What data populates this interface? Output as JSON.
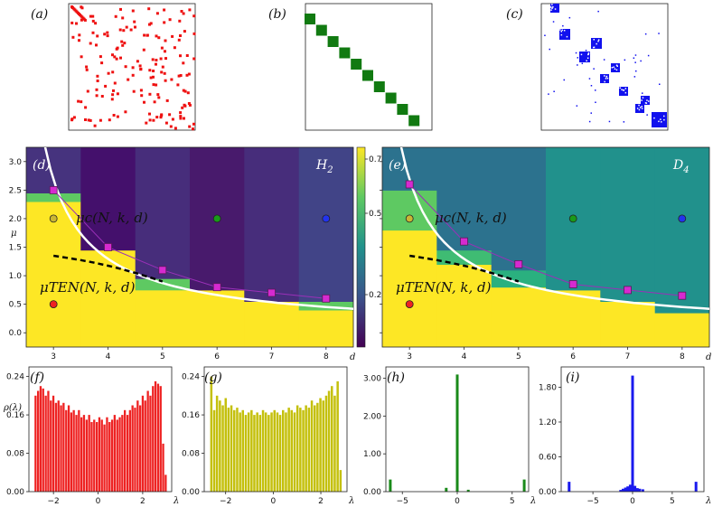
{
  "panels": {
    "a": {
      "label": "(a)",
      "color": "#ee1111"
    },
    "b": {
      "label": "(b)",
      "color": "#117a11"
    },
    "c": {
      "label": "(c)",
      "color": "#1111ee"
    },
    "d": {
      "label": "(d)",
      "corner": "H",
      "corner_sub": "2"
    },
    "e": {
      "label": "(e)",
      "corner": "D",
      "corner_sub": "4"
    },
    "f": {
      "label": "(f)"
    },
    "g": {
      "label": "(g)"
    },
    "h": {
      "label": "(h)"
    },
    "i": {
      "label": "(i)"
    }
  },
  "curve_labels": {
    "mu_c": "μc(N, k, d)",
    "mu_ten": "μTEN(N, k, d)"
  },
  "colorbar": {
    "ticks": [
      "0.7",
      "0.5",
      "0.2"
    ]
  },
  "chart_data": [
    {
      "id": "d",
      "type": "heatmap",
      "title": "H2",
      "xlabel": "d",
      "ylabel": "μ",
      "xticks": [
        "3",
        "4",
        "5",
        "6",
        "7",
        "8"
      ],
      "yticks": [
        "0.0",
        "0.5",
        "1.0",
        "1.5",
        "2.0",
        "2.5",
        "3.0"
      ],
      "xlim": [
        2.5,
        8.5
      ],
      "ylim": [
        -0.25,
        3.25
      ],
      "mu_c_points": [
        [
          3,
          2.5
        ],
        [
          4,
          1.5
        ],
        [
          5,
          1.1
        ],
        [
          6,
          0.8
        ],
        [
          7,
          0.7
        ],
        [
          8,
          0.6
        ]
      ],
      "markers": [
        {
          "d": 3,
          "mu": 2.0,
          "color": "#c9b634"
        },
        {
          "d": 3,
          "mu": 0.5,
          "color": "#ee2222"
        },
        {
          "d": 6,
          "mu": 2.0,
          "color": "#1a9a1a"
        },
        {
          "d": 8,
          "mu": 2.0,
          "color": "#2233ee"
        }
      ],
      "mu_ten_points": [
        [
          3,
          1.35
        ],
        [
          4,
          1.12
        ],
        [
          5,
          0.9
        ]
      ]
    },
    {
      "id": "e",
      "type": "heatmap",
      "title": "D4",
      "xlabel": "d",
      "xticks": [
        "3",
        "4",
        "5",
        "6",
        "7",
        "8"
      ],
      "yticks": [
        "0.0",
        "0.5",
        "1.0",
        "1.5",
        "2.0",
        "2.5",
        "3.0"
      ],
      "xlim": [
        2.5,
        8.5
      ],
      "ylim": [
        -0.25,
        3.25
      ],
      "mu_c_points": [
        [
          3,
          2.6
        ],
        [
          4,
          1.6
        ],
        [
          5,
          1.2
        ],
        [
          6,
          0.85
        ],
        [
          7,
          0.75
        ],
        [
          8,
          0.65
        ]
      ],
      "markers": [
        {
          "d": 3,
          "mu": 2.0,
          "color": "#c9b634"
        },
        {
          "d": 3,
          "mu": 0.5,
          "color": "#ee2222"
        },
        {
          "d": 6,
          "mu": 2.0,
          "color": "#1a9a1a"
        },
        {
          "d": 8,
          "mu": 2.0,
          "color": "#2233ee"
        }
      ],
      "mu_ten_points": [
        [
          3,
          1.35
        ],
        [
          4,
          1.12
        ],
        [
          5,
          0.9
        ]
      ]
    },
    {
      "id": "f",
      "type": "bar",
      "xlabel": "λ",
      "ylabel": "ρ(λ)",
      "color": "#ee2222",
      "xticks": [
        "−2",
        "0",
        "2"
      ],
      "yticks": [
        "0.00",
        "0.08",
        "0.16",
        "0.24"
      ],
      "xlim": [
        -3.1,
        3.3
      ],
      "ylim": [
        0,
        0.26
      ],
      "values": [
        0.2,
        0.21,
        0.22,
        0.215,
        0.2,
        0.21,
        0.19,
        0.2,
        0.185,
        0.19,
        0.18,
        0.185,
        0.17,
        0.18,
        0.165,
        0.17,
        0.16,
        0.17,
        0.155,
        0.16,
        0.15,
        0.16,
        0.145,
        0.15,
        0.145,
        0.155,
        0.15,
        0.14,
        0.155,
        0.145,
        0.15,
        0.16,
        0.15,
        0.155,
        0.16,
        0.17,
        0.16,
        0.17,
        0.18,
        0.175,
        0.19,
        0.18,
        0.2,
        0.19,
        0.21,
        0.2,
        0.22,
        0.23,
        0.225,
        0.22,
        0.1,
        0.035
      ]
    },
    {
      "id": "g",
      "type": "bar",
      "xlabel": "λ",
      "color": "#c4c00c",
      "xticks": [
        "−2",
        "0",
        "2"
      ],
      "yticks": [
        "0.00",
        "0.08",
        "0.16",
        "0.24"
      ],
      "xlim": [
        -2.9,
        3.1
      ],
      "ylim": [
        0,
        0.26
      ],
      "values": [
        0.24,
        0.17,
        0.2,
        0.19,
        0.18,
        0.195,
        0.175,
        0.18,
        0.17,
        0.175,
        0.165,
        0.17,
        0.16,
        0.165,
        0.17,
        0.16,
        0.165,
        0.16,
        0.17,
        0.165,
        0.16,
        0.165,
        0.17,
        0.165,
        0.16,
        0.17,
        0.165,
        0.175,
        0.17,
        0.165,
        0.18,
        0.175,
        0.17,
        0.18,
        0.175,
        0.19,
        0.18,
        0.185,
        0.195,
        0.19,
        0.2,
        0.21,
        0.22,
        0.2,
        0.23,
        0.045
      ]
    },
    {
      "id": "h",
      "type": "bar",
      "xlabel": "λ",
      "color": "#1a8a1a",
      "xticks": [
        "−5",
        "0",
        "5"
      ],
      "yticks": [
        "0.00",
        "1.00",
        "2.00",
        "3.00"
      ],
      "xlim": [
        -6.5,
        6.5
      ],
      "ylim": [
        0,
        3.3
      ],
      "bars": [
        {
          "x": -6.1,
          "v": 0.32
        },
        {
          "x": -1.0,
          "v": 0.1
        },
        {
          "x": 0.0,
          "v": 3.1
        },
        {
          "x": 1.0,
          "v": 0.05
        },
        {
          "x": 6.1,
          "v": 0.32
        }
      ]
    },
    {
      "id": "i",
      "type": "bar",
      "xlabel": "λ",
      "color": "#1a1aee",
      "xticks": [
        "−5",
        "0",
        "5"
      ],
      "yticks": [
        "0.00",
        "0.60",
        "1.20",
        "1.80"
      ],
      "xlim": [
        -9,
        9
      ],
      "ylim": [
        0,
        2.15
      ],
      "bars": [
        {
          "x": -8.0,
          "v": 0.17
        },
        {
          "x": -1.5,
          "v": 0.03
        },
        {
          "x": -1.2,
          "v": 0.05
        },
        {
          "x": -0.9,
          "v": 0.07
        },
        {
          "x": -0.6,
          "v": 0.09
        },
        {
          "x": -0.3,
          "v": 0.12
        },
        {
          "x": 0.0,
          "v": 2.0
        },
        {
          "x": 0.3,
          "v": 0.1
        },
        {
          "x": 0.6,
          "v": 0.06
        },
        {
          "x": 0.9,
          "v": 0.05
        },
        {
          "x": 1.3,
          "v": 0.04
        },
        {
          "x": 8.0,
          "v": 0.17
        }
      ]
    }
  ]
}
